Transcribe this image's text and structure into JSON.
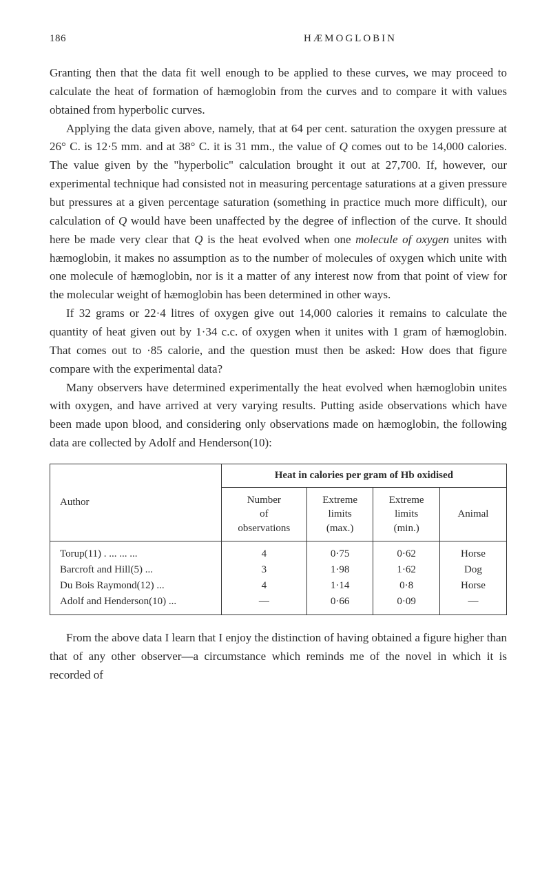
{
  "header": {
    "page_number": "186",
    "title": "HÆMOGLOBIN"
  },
  "paragraphs": {
    "p1": "Granting then that the data fit well enough to be applied to these curves, we may proceed to calculate the heat of formation of hæmoglobin from the curves and to compare it with values obtained from hyperbolic curves.",
    "p2_part1": "Applying the data given above, namely, that at 64 per cent. saturation the oxygen pressure at 26° C. is 12·5 mm. and at 38° C. it is 31 mm., the value of ",
    "p2_q1": "Q",
    "p2_part2": " comes out to be 14,000 calories. The value given by the \"hyperbolic\" calculation brought it out at 27,700. If, however, our experimental technique had consisted not in measuring percentage saturations at a given pressure but pressures at a given percentage saturation (something in practice much more difficult), our calculation of ",
    "p2_q2": "Q",
    "p2_part3": " would have been unaffected by the degree of inflection of the curve. It should here be made very clear that ",
    "p2_q3": "Q",
    "p2_part4": " is the heat evolved when one ",
    "p2_italic": "molecule of oxygen",
    "p2_part5": " unites with hæmoglobin, it makes no assumption as to the number of molecules of oxygen which unite with one molecule of hæmoglobin, nor is it a matter of any interest now from that point of view for the molecular weight of hæmoglobin has been determined in other ways.",
    "p3": "If 32 grams or 22·4 litres of oxygen give out 14,000 calories it remains to calculate the quantity of heat given out by 1·34 c.c. of oxygen when it unites with 1 gram of hæmoglobin. That comes out to ·85 calorie, and the question must then be asked: How does that figure compare with the experimental data?",
    "p4": "Many observers have determined experimentally the heat evolved when hæmoglobin unites with oxygen, and have arrived at very varying results. Putting aside observations which have been made upon blood, and considering only observations made on hæmoglobin, the following data are collected by Adolf and Henderson(10):",
    "p5": "From the above data I learn that I enjoy the distinction of having obtained a figure higher than that of any other observer—a circumstance which reminds me of the novel in which it is recorded of"
  },
  "table": {
    "spanning_header": "Heat in calories per gram of Hb oxidised",
    "columns": {
      "author": "Author",
      "number": "Number\nof\nobservations",
      "ext_max": "Extreme\nlimits\n(max.)",
      "ext_min": "Extreme\nlimits\n(min.)",
      "animal": "Animal"
    },
    "rows": [
      {
        "author": "Torup(11)  .  ...      ...      ...",
        "number": "4",
        "ext_max": "0·75",
        "ext_min": "0·62",
        "animal": "Horse"
      },
      {
        "author": "Barcroft and Hill(5)          ...",
        "number": "3",
        "ext_max": "1·98",
        "ext_min": "1·62",
        "animal": "Dog"
      },
      {
        "author": "Du Bois Raymond(12)       ...",
        "number": "4",
        "ext_max": "1·14",
        "ext_min": "0·8",
        "animal": "Horse"
      },
      {
        "author": "Adolf and Henderson(10)  ...",
        "number": "—",
        "ext_max": "0·66",
        "ext_min": "0·09",
        "animal": "—"
      }
    ]
  }
}
